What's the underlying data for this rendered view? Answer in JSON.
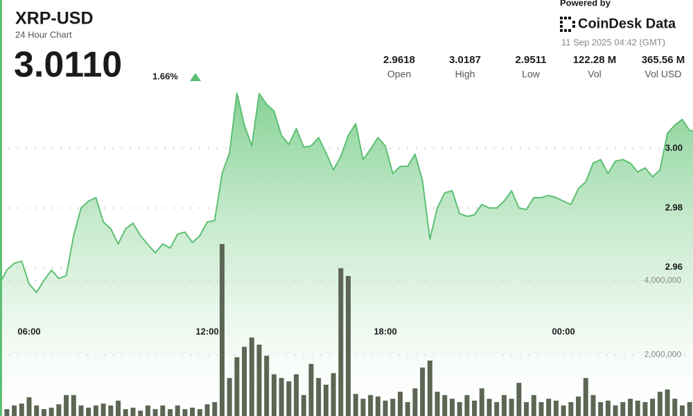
{
  "header": {
    "title": "XRP-USD",
    "subtitle": "24 Hour Chart",
    "price": "3.0110",
    "change": "1.66%",
    "powered_by": "Powered by",
    "brand": "CoinDesk Data",
    "timestamp": "11 Sep 2025 04:42 (GMT)"
  },
  "stats": [
    {
      "value": "2.9618",
      "label": "Open"
    },
    {
      "value": "3.0187",
      "label": "High"
    },
    {
      "value": "2.9511",
      "label": "Low"
    },
    {
      "value": "122.28 M",
      "label": "Vol"
    },
    {
      "value": "365.56 M",
      "label": "Vol USD"
    }
  ],
  "chart_data": {
    "type": "line",
    "grid": true,
    "categories": [
      null,
      null,
      null,
      null,
      "06:00",
      null,
      null,
      null,
      null,
      null,
      null,
      null,
      null,
      null,
      null,
      null,
      null,
      null,
      null,
      null,
      null,
      null,
      null,
      null,
      null,
      null,
      null,
      null,
      "12:00",
      null,
      null,
      null,
      null,
      null,
      null,
      null,
      null,
      null,
      null,
      null,
      null,
      null,
      null,
      null,
      null,
      null,
      null,
      null,
      null,
      null,
      null,
      null,
      "18:00",
      null,
      null,
      null,
      null,
      null,
      null,
      null,
      null,
      null,
      null,
      null,
      null,
      null,
      null,
      null,
      null,
      null,
      null,
      null,
      null,
      null,
      null,
      null,
      "00:00",
      null,
      null,
      null,
      null,
      null,
      null,
      null,
      null,
      null,
      null,
      null,
      null,
      null,
      null,
      null,
      null,
      null
    ],
    "ylim": [
      2.91,
      3.022
    ],
    "yticks": [
      2.96,
      2.98,
      {
        "value": 3,
        "label": "3.00"
      }
    ],
    "y2lim": [
      0,
      9300000
    ],
    "y2ticks": [
      {
        "value": 2000000,
        "label": "2,000,000"
      },
      {
        "value": 4000000,
        "label": "4,000,000"
      }
    ],
    "series": [
      {
        "type": "line",
        "color": "#5cbf72",
        "values": [
          2.9544,
          2.9591,
          2.9614,
          2.9621,
          2.9544,
          2.9516,
          2.9556,
          2.9591,
          2.9563,
          2.9572,
          2.9707,
          2.98,
          2.9823,
          2.9835,
          2.9753,
          2.973,
          2.9679,
          2.973,
          2.9749,
          2.9707,
          2.9677,
          2.9649,
          2.9679,
          2.9665,
          2.9712,
          2.9719,
          2.9684,
          2.9707,
          2.9753,
          2.9758,
          2.9916,
          2.9986,
          3.0187,
          3.0079,
          3.0009,
          3.0185,
          3.0149,
          3.0126,
          3.0044,
          3.0014,
          3.0067,
          3.0005,
          3.0009,
          3.0037,
          2.9986,
          2.9928,
          2.9974,
          3.0044,
          3.0084,
          2.9963,
          2.9998,
          3.0037,
          3.0009,
          2.9916,
          2.994,
          2.994,
          2.9981,
          2.9893,
          2.9695,
          2.98,
          2.9851,
          2.9858,
          2.9781,
          2.9772,
          2.9777,
          2.9812,
          2.98,
          2.98,
          2.9823,
          2.9858,
          2.98,
          2.9795,
          2.9835,
          2.9835,
          2.9842,
          2.9835,
          2.9823,
          2.9812,
          2.9865,
          2.9888,
          2.9951,
          2.9963,
          2.9916,
          2.9958,
          2.9963,
          2.9951,
          2.9921,
          2.9935,
          2.9905,
          2.9928,
          3.0051,
          3.0079,
          3.0098,
          3.006
        ]
      },
      {
        "type": "bar",
        "axis": "y2",
        "color": "#5d6655",
        "values": [
          540000,
          540000,
          640000,
          690000,
          860000,
          640000,
          540000,
          580000,
          670000,
          920000,
          920000,
          640000,
          580000,
          640000,
          690000,
          640000,
          770000,
          540000,
          580000,
          500000,
          640000,
          540000,
          640000,
          540000,
          640000,
          540000,
          580000,
          540000,
          670000,
          730000,
          4990000,
          1380000,
          1940000,
          2220000,
          2470000,
          2280000,
          1980000,
          1480000,
          1380000,
          1290000,
          1480000,
          920000,
          1760000,
          1380000,
          1200000,
          1510000,
          4340000,
          4130000,
          950000,
          820000,
          920000,
          880000,
          770000,
          820000,
          1010000,
          730000,
          1100000,
          1660000,
          1850000,
          1010000,
          920000,
          820000,
          730000,
          920000,
          770000,
          1100000,
          820000,
          730000,
          920000,
          820000,
          1250000,
          730000,
          920000,
          730000,
          820000,
          770000,
          640000,
          730000,
          880000,
          1380000,
          920000,
          730000,
          770000,
          640000,
          730000,
          820000,
          770000,
          730000,
          820000,
          1010000,
          1070000,
          820000,
          640000,
          730000
        ]
      }
    ]
  }
}
